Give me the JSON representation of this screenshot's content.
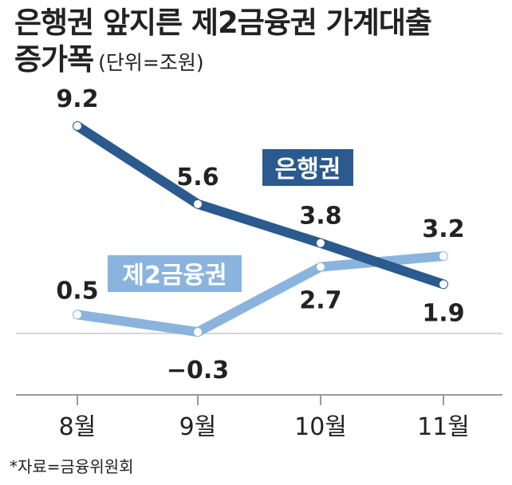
{
  "title": {
    "line1": "은행권 앞지른 제2금융권 가계대출",
    "line2": "증가폭",
    "unit": "(단위=조원)"
  },
  "source": "*자료=금융위원회",
  "colors": {
    "bank": "#2a5a8e",
    "second_tier": "#8ab4de",
    "axis": "#9a9a9a"
  },
  "chart_data": {
    "type": "line",
    "title": "은행권 앞지른 제2금융권 가계대출 증가폭",
    "unit": "(단위=조원)",
    "categories": [
      "8월",
      "9월",
      "10월",
      "11월"
    ],
    "series": [
      {
        "name": "은행권",
        "values": [
          9.2,
          5.6,
          3.8,
          1.9
        ]
      },
      {
        "name": "제2금융권",
        "values": [
          0.5,
          -0.3,
          2.7,
          3.2
        ]
      }
    ],
    "value_labels": {
      "은행권": [
        "9.2",
        "5.6",
        "3.8",
        "1.9"
      ],
      "제2금융권": [
        "0.5",
        "-0.3",
        "2.7",
        "3.2"
      ]
    },
    "ylim": [
      -3,
      10.5
    ],
    "grid": false,
    "zero_line": true,
    "legend": "inline-labels"
  }
}
